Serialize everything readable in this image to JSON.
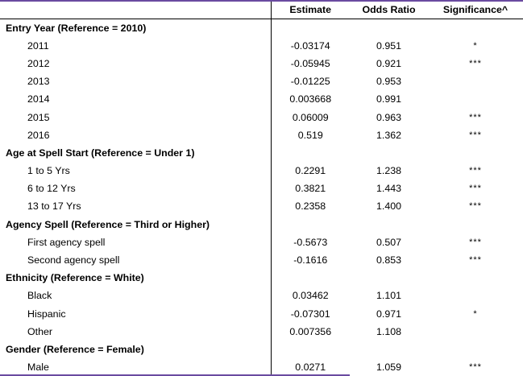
{
  "header": {
    "col0": "",
    "col1": "Estimate",
    "col2": "Odds Ratio",
    "col3": "Significance^"
  },
  "rows": [
    {
      "type": "group",
      "label": "Entry Year (Reference = 2010)"
    },
    {
      "type": "item",
      "label": "2011",
      "estimate": "-0.03174",
      "odds_ratio": "0.951",
      "significance": "*"
    },
    {
      "type": "item",
      "label": "2012",
      "estimate": "-0.05945",
      "odds_ratio": "0.921",
      "significance": "***"
    },
    {
      "type": "item",
      "label": "2013",
      "estimate": "-0.01225",
      "odds_ratio": "0.953",
      "significance": ""
    },
    {
      "type": "item",
      "label": "2014",
      "estimate": "0.003668",
      "odds_ratio": "0.991",
      "significance": ""
    },
    {
      "type": "item",
      "label": "2015",
      "estimate": "0.06009",
      "odds_ratio": "0.963",
      "significance": "***"
    },
    {
      "type": "item",
      "label": "2016",
      "estimate": "0.519",
      "odds_ratio": "1.362",
      "significance": "***"
    },
    {
      "type": "group",
      "label": "Age at Spell Start (Reference = Under 1)"
    },
    {
      "type": "item",
      "label": "1 to 5 Yrs",
      "estimate": "0.2291",
      "odds_ratio": "1.238",
      "significance": "***"
    },
    {
      "type": "item",
      "label": "6 to 12 Yrs",
      "estimate": "0.3821",
      "odds_ratio": "1.443",
      "significance": "***"
    },
    {
      "type": "item",
      "label": "13 to 17 Yrs",
      "estimate": "0.2358",
      "odds_ratio": "1.400",
      "significance": "***"
    },
    {
      "type": "group",
      "label": "Agency Spell (Reference = Third or Higher)"
    },
    {
      "type": "item",
      "label": "First agency spell",
      "estimate": "-0.5673",
      "odds_ratio": "0.507",
      "significance": "***"
    },
    {
      "type": "item",
      "label": "Second agency spell",
      "estimate": "-0.1616",
      "odds_ratio": "0.853",
      "significance": "***"
    },
    {
      "type": "group",
      "label": "Ethnicity (Reference = White)"
    },
    {
      "type": "item",
      "label": "Black",
      "estimate": "0.03462",
      "odds_ratio": "1.101",
      "significance": ""
    },
    {
      "type": "item",
      "label": "Hispanic",
      "estimate": "-0.07301",
      "odds_ratio": "0.971",
      "significance": "*"
    },
    {
      "type": "item",
      "label": "Other",
      "estimate": "0.007356",
      "odds_ratio": "1.108",
      "significance": ""
    },
    {
      "type": "group",
      "label": "Gender (Reference = Female)"
    },
    {
      "type": "item",
      "label": "Male",
      "estimate": "0.0271",
      "odds_ratio": "1.059",
      "significance": "***"
    }
  ]
}
